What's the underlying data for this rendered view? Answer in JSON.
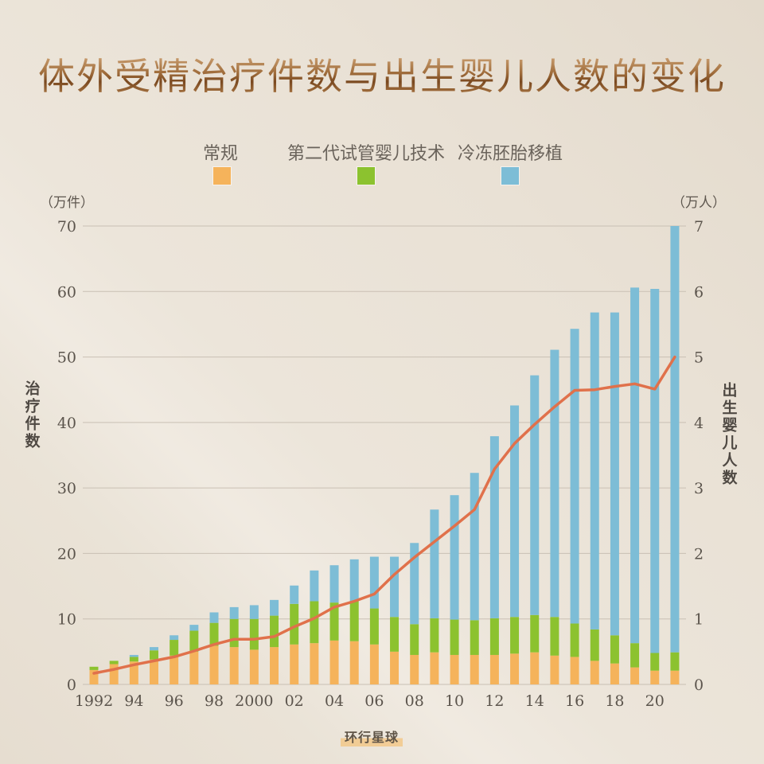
{
  "title": "体外受精治疗件数与出生婴儿人数的变化",
  "legend": [
    {
      "label": "常规",
      "color": "#f5b35b"
    },
    {
      "label": "第二代试管婴儿技术",
      "color": "#8cc22f"
    },
    {
      "label": "冷冻胚胎移植",
      "color": "#7dbdd6"
    }
  ],
  "axes": {
    "left_unit": "（万件）",
    "right_unit": "（万人）",
    "left_title": "治疗件数",
    "right_title": "出生婴儿人数"
  },
  "watermark": "环行星球",
  "chart_data": {
    "type": "bar",
    "title": "体外受精治疗件数与出生婴儿人数的变化",
    "stacked": true,
    "categories": [
      "1992",
      "1993",
      "1994",
      "1995",
      "1996",
      "1997",
      "1998",
      "1999",
      "2000",
      "2001",
      "2002",
      "2003",
      "2004",
      "2005",
      "2006",
      "2007",
      "2008",
      "2009",
      "2010",
      "2011",
      "2012",
      "2013",
      "2014",
      "2015",
      "2016",
      "2017",
      "2018",
      "2019",
      "2020",
      "2021"
    ],
    "x_ticks": [
      {
        "category": "1992",
        "label": "1992"
      },
      {
        "category": "1994",
        "label": "94"
      },
      {
        "category": "1996",
        "label": "96"
      },
      {
        "category": "1998",
        "label": "98"
      },
      {
        "category": "2000",
        "label": "2000"
      },
      {
        "category": "2002",
        "label": "02"
      },
      {
        "category": "2004",
        "label": "04"
      },
      {
        "category": "2006",
        "label": "06"
      },
      {
        "category": "2008",
        "label": "08"
      },
      {
        "category": "2010",
        "label": "10"
      },
      {
        "category": "2012",
        "label": "12"
      },
      {
        "category": "2014",
        "label": "14"
      },
      {
        "category": "2016",
        "label": "16"
      },
      {
        "category": "2018",
        "label": "18"
      },
      {
        "category": "2020",
        "label": "20"
      }
    ],
    "series": [
      {
        "name": "常规",
        "type": "bar",
        "axis": "left",
        "color": "#f5b35b",
        "values": [
          2.2,
          3.1,
          3.5,
          3.8,
          4.4,
          5.0,
          5.9,
          5.7,
          5.3,
          5.7,
          6.1,
          6.3,
          6.7,
          6.6,
          6.1,
          5.0,
          4.5,
          4.9,
          4.5,
          4.5,
          4.5,
          4.7,
          4.9,
          4.4,
          4.2,
          3.6,
          3.2,
          2.6,
          2.1,
          2.1
        ]
      },
      {
        "name": "第二代试管婴儿技术",
        "type": "bar",
        "axis": "left",
        "color": "#8cc22f",
        "values": [
          0.5,
          0.5,
          0.7,
          1.4,
          2.4,
          3.2,
          3.5,
          4.3,
          4.7,
          4.8,
          6.2,
          6.4,
          5.8,
          6.1,
          5.5,
          5.3,
          4.7,
          5.2,
          5.4,
          5.3,
          5.6,
          5.6,
          5.7,
          5.9,
          5.1,
          4.8,
          4.3,
          3.7,
          2.7,
          2.8
        ]
      },
      {
        "name": "冷冻胚胎移植",
        "type": "bar",
        "axis": "left",
        "color": "#7dbdd6",
        "values": [
          0.0,
          0.0,
          0.3,
          0.5,
          0.7,
          0.9,
          1.6,
          1.8,
          2.1,
          2.4,
          2.8,
          4.7,
          5.7,
          6.4,
          7.9,
          9.2,
          12.4,
          16.6,
          19.0,
          22.5,
          27.8,
          32.3,
          36.6,
          40.8,
          45.0,
          48.4,
          49.3,
          54.3,
          55.6,
          65.1
        ]
      },
      {
        "name": "出生婴儿人数",
        "type": "line",
        "axis": "right",
        "color": "#e0714b",
        "values": [
          0.17,
          0.23,
          0.3,
          0.36,
          0.42,
          0.51,
          0.61,
          0.69,
          0.69,
          0.73,
          0.88,
          1.01,
          1.18,
          1.27,
          1.38,
          1.68,
          1.94,
          2.18,
          2.42,
          2.67,
          3.29,
          3.68,
          3.97,
          4.24,
          4.49,
          4.5,
          4.55,
          4.59,
          4.51,
          5.0
        ]
      }
    ],
    "xlabel": "",
    "ylabel_left": "治疗件数（万件）",
    "ylabel_right": "出生婴儿人数（万人）",
    "ylim_left": [
      0,
      70
    ],
    "yticks_left": [
      0,
      10,
      20,
      30,
      40,
      50,
      60,
      70
    ],
    "ylim_right": [
      0,
      7
    ],
    "yticks_right": [
      0,
      1,
      2,
      3,
      4,
      5,
      6,
      7
    ],
    "grid": true,
    "legend_position": "top"
  }
}
